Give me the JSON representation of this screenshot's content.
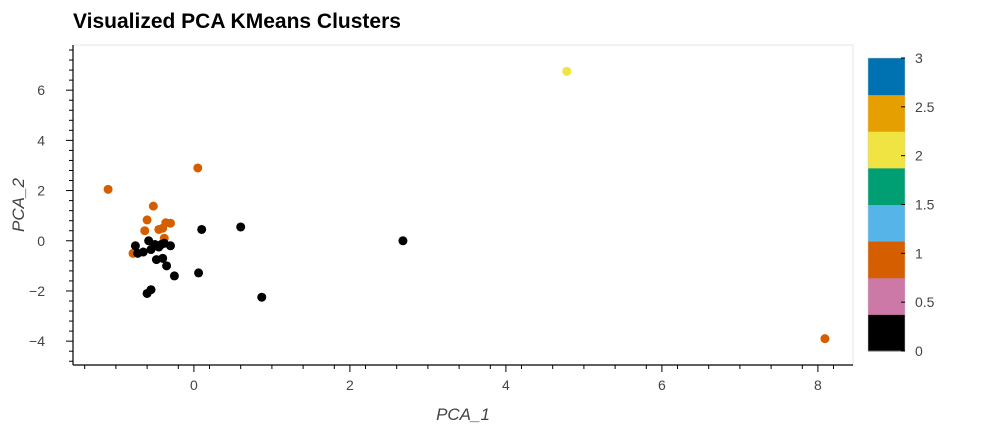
{
  "chart_data": {
    "type": "scatter",
    "title": "Visualized PCA KMeans Clusters",
    "xlabel": "PCA_1",
    "ylabel": "PCA_2",
    "xlim": [
      -1.55,
      8.45
    ],
    "ylim": [
      -4.95,
      7.8
    ],
    "x_ticks": [
      0,
      2,
      4,
      6,
      8
    ],
    "y_ticks": [
      -4,
      -2,
      0,
      2,
      4,
      6
    ],
    "grid": false,
    "colorbar": {
      "range": [
        0,
        3
      ],
      "tick_values": [
        0,
        0.5,
        1,
        1.5,
        2,
        2.5,
        3
      ],
      "tick_labels": [
        "0",
        "0.5",
        "1",
        "1.5",
        "2",
        "2.5",
        "3"
      ],
      "colors": [
        "#000000",
        "#cc79a7",
        "#d55e00",
        "#56b4e9",
        "#009e73",
        "#f0e442",
        "#e69f00",
        "#0072b2"
      ]
    },
    "points": [
      {
        "x": -1.1,
        "y": 2.05,
        "c": 1
      },
      {
        "x": 0.05,
        "y": 2.9,
        "c": 1
      },
      {
        "x": -0.52,
        "y": 1.38,
        "c": 1
      },
      {
        "x": -0.6,
        "y": 0.83,
        "c": 1
      },
      {
        "x": -0.3,
        "y": 0.7,
        "c": 1
      },
      {
        "x": -0.36,
        "y": 0.72,
        "c": 1
      },
      {
        "x": -0.63,
        "y": 0.4,
        "c": 1
      },
      {
        "x": -0.45,
        "y": 0.45,
        "c": 1
      },
      {
        "x": -0.4,
        "y": 0.5,
        "c": 1
      },
      {
        "x": -0.38,
        "y": 0.1,
        "c": 1
      },
      {
        "x": -0.78,
        "y": -0.5,
        "c": 1
      },
      {
        "x": -0.75,
        "y": -0.2,
        "c": 0
      },
      {
        "x": -0.72,
        "y": -0.5,
        "c": 0
      },
      {
        "x": -0.65,
        "y": -0.45,
        "c": 0
      },
      {
        "x": -0.58,
        "y": 0.0,
        "c": 0
      },
      {
        "x": -0.55,
        "y": -0.35,
        "c": 0
      },
      {
        "x": -0.5,
        "y": -0.15,
        "c": 0
      },
      {
        "x": -0.45,
        "y": -0.25,
        "c": 0
      },
      {
        "x": -0.42,
        "y": -0.15,
        "c": 0
      },
      {
        "x": -0.38,
        "y": -0.1,
        "c": 0
      },
      {
        "x": -0.3,
        "y": -0.2,
        "c": 0
      },
      {
        "x": -0.48,
        "y": -0.75,
        "c": 0
      },
      {
        "x": -0.4,
        "y": -0.7,
        "c": 0
      },
      {
        "x": -0.35,
        "y": -1.0,
        "c": 0
      },
      {
        "x": -0.25,
        "y": -1.4,
        "c": 0
      },
      {
        "x": -0.6,
        "y": -2.1,
        "c": 0
      },
      {
        "x": -0.55,
        "y": -1.95,
        "c": 0
      },
      {
        "x": 0.1,
        "y": 0.45,
        "c": 0
      },
      {
        "x": 0.06,
        "y": -1.28,
        "c": 0
      },
      {
        "x": 0.6,
        "y": 0.55,
        "c": 0
      },
      {
        "x": 0.87,
        "y": -2.25,
        "c": 0
      },
      {
        "x": 2.68,
        "y": 0.0,
        "c": 0
      },
      {
        "x": 4.78,
        "y": 6.75,
        "c": 2
      },
      {
        "x": 8.09,
        "y": -3.9,
        "c": 1
      }
    ]
  }
}
